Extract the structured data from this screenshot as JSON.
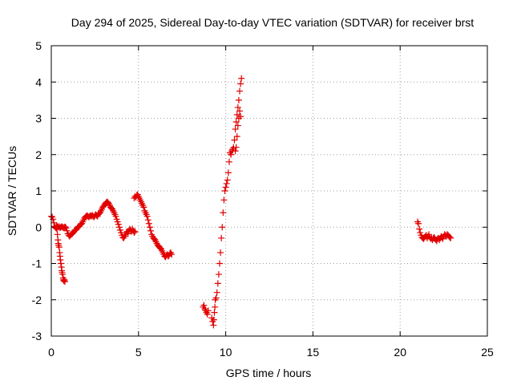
{
  "chart_data": {
    "type": "scatter",
    "title": "Day 294 of 2025, Sidereal Day-to-day VTEC variation (SDTVAR) for receiver brst",
    "xlabel": "GPS time / hours",
    "ylabel": "SDTVAR / TECUs",
    "xlim": [
      0,
      25
    ],
    "ylim": [
      -3,
      5
    ],
    "xticks": [
      0,
      5,
      10,
      15,
      20,
      25
    ],
    "yticks": [
      -3,
      -2,
      -1,
      0,
      1,
      2,
      3,
      4,
      5
    ],
    "grid": true,
    "marker": "plus",
    "color": "#e00000",
    "series": [
      {
        "x": [
          0.0,
          0.05,
          0.1,
          0.15,
          0.2,
          0.25,
          0.3,
          0.35,
          0.4,
          0.45,
          0.5,
          0.55,
          0.6,
          0.65,
          0.7,
          0.75,
          0.8,
          0.85,
          0.9,
          0.95,
          1.0,
          1.05,
          1.1,
          1.15,
          1.2,
          1.25,
          1.3,
          1.35,
          1.4,
          1.45,
          1.5,
          1.55,
          1.6,
          1.65,
          1.7,
          1.75,
          1.8,
          1.85,
          1.9,
          1.95,
          2.0,
          2.05,
          2.1,
          2.15,
          2.2,
          2.25,
          2.3,
          2.35,
          2.4,
          2.45,
          2.5,
          2.55,
          2.6,
          2.65,
          2.7,
          2.75,
          2.8,
          2.85,
          2.9,
          2.95,
          3.0,
          3.05,
          3.1,
          3.15,
          3.2,
          3.25,
          3.3,
          3.35,
          3.4,
          3.45,
          3.5,
          3.55,
          3.6,
          3.65,
          3.7,
          3.75,
          3.8,
          3.85,
          3.9,
          3.95,
          4.0,
          4.05,
          4.1,
          4.15,
          4.2,
          4.25,
          4.3,
          4.35,
          4.4,
          4.45,
          4.5,
          4.55,
          4.6,
          4.65,
          4.7,
          4.75,
          4.8
        ],
        "y": [
          0.3,
          0.28,
          0.22,
          0.12,
          0.02,
          -0.02,
          -0.02,
          0.02,
          0.0,
          0.02,
          -0.02,
          0.0,
          0.02,
          0.0,
          -0.02,
          0.0,
          0.01,
          -0.02,
          -0.1,
          -0.18,
          -0.22,
          -0.25,
          -0.22,
          -0.2,
          -0.18,
          -0.15,
          -0.12,
          -0.08,
          -0.08,
          -0.05,
          -0.02,
          0.02,
          0.02,
          0.06,
          0.08,
          0.1,
          0.15,
          0.2,
          0.25,
          0.28,
          0.3,
          0.32,
          0.3,
          0.28,
          0.3,
          0.32,
          0.3,
          0.33,
          0.3,
          0.28,
          0.32,
          0.35,
          0.32,
          0.3,
          0.35,
          0.38,
          0.4,
          0.45,
          0.5,
          0.55,
          0.58,
          0.62,
          0.65,
          0.68,
          0.7,
          0.68,
          0.65,
          0.6,
          0.55,
          0.52,
          0.5,
          0.45,
          0.4,
          0.35,
          0.3,
          0.22,
          0.15,
          0.08,
          0.0,
          -0.08,
          -0.15,
          -0.22,
          -0.28,
          -0.3,
          -0.25,
          -0.2,
          -0.15,
          -0.12,
          -0.18,
          -0.1,
          -0.05,
          -0.08,
          -0.12,
          -0.05,
          -0.1,
          -0.15,
          -0.12
        ]
      },
      {
        "x": [
          0.3,
          0.32,
          0.35,
          0.38,
          0.4,
          0.42,
          0.45,
          0.48,
          0.5,
          0.52,
          0.55,
          0.58,
          0.6,
          0.62,
          0.65,
          0.68,
          0.7,
          0.72,
          0.75,
          0.78
        ],
        "y": [
          0.05,
          -0.05,
          -0.2,
          -0.35,
          -0.45,
          -0.5,
          -0.55,
          -0.7,
          -0.8,
          -0.9,
          -1.0,
          -1.1,
          -1.2,
          -1.25,
          -1.3,
          -1.4,
          -1.45,
          -1.48,
          -1.45,
          -1.5
        ]
      },
      {
        "x": [
          4.75,
          4.8,
          4.85,
          4.9,
          4.95,
          5.0,
          5.05,
          5.1,
          5.15,
          5.2,
          5.25,
          5.3,
          5.35,
          5.4,
          5.45,
          5.5,
          5.55,
          5.6,
          5.65,
          5.7,
          5.75,
          5.8,
          5.85,
          5.9,
          5.95,
          6.0,
          6.05,
          6.1,
          6.15,
          6.2,
          6.25,
          6.3,
          6.35,
          6.4,
          6.45,
          6.5,
          6.55,
          6.6,
          6.65,
          6.7,
          6.75,
          6.8,
          6.85,
          6.9
        ],
        "y": [
          0.8,
          0.85,
          0.82,
          0.88,
          0.9,
          0.85,
          0.8,
          0.75,
          0.7,
          0.65,
          0.6,
          0.55,
          0.45,
          0.4,
          0.35,
          0.3,
          0.2,
          0.1,
          0.0,
          -0.1,
          -0.2,
          -0.25,
          -0.3,
          -0.32,
          -0.35,
          -0.4,
          -0.45,
          -0.5,
          -0.52,
          -0.55,
          -0.58,
          -0.6,
          -0.65,
          -0.7,
          -0.75,
          -0.8,
          -0.82,
          -0.78,
          -0.75,
          -0.8,
          -0.78,
          -0.72,
          -0.7,
          -0.75
        ]
      },
      {
        "x": [
          8.7,
          8.75,
          8.8,
          8.85,
          8.9,
          8.95,
          9.0
        ],
        "y": [
          -2.2,
          -2.15,
          -2.25,
          -2.3,
          -2.35,
          -2.4,
          -2.3
        ]
      },
      {
        "x": [
          9.2,
          9.25,
          9.3,
          9.32,
          9.35,
          9.38,
          9.4,
          9.45,
          9.5,
          9.55,
          9.6,
          9.65,
          9.7,
          9.75,
          9.8,
          9.85,
          9.9,
          9.95,
          10.0,
          10.05,
          10.1,
          10.15,
          10.2,
          10.25,
          10.3,
          10.35,
          10.4,
          10.45,
          10.5,
          10.55,
          10.6,
          10.65,
          10.7,
          10.75,
          10.8,
          10.85,
          10.9
        ],
        "y": [
          -2.5,
          -2.6,
          -2.7,
          -2.55,
          -2.35,
          -2.2,
          -2.0,
          -1.95,
          -1.8,
          -1.55,
          -1.3,
          -1.0,
          -0.7,
          -0.3,
          0.0,
          0.4,
          0.75,
          1.0,
          1.1,
          1.2,
          1.3,
          1.5,
          1.8,
          2.05,
          2.0,
          2.1,
          2.15,
          2.2,
          2.4,
          2.7,
          2.9,
          3.1,
          3.3,
          3.5,
          3.75,
          3.95,
          4.1
        ]
      },
      {
        "x": [
          10.55,
          10.6,
          10.65,
          10.7,
          10.75,
          10.8,
          10.85
        ],
        "y": [
          2.1,
          2.2,
          2.5,
          2.8,
          3.0,
          3.2,
          3.05
        ]
      },
      {
        "x": [
          21.0,
          21.05,
          21.1,
          21.15,
          21.2,
          21.25,
          21.3,
          21.35,
          21.4,
          21.45,
          21.5,
          21.55,
          21.6,
          21.65,
          21.7,
          21.75,
          21.8,
          21.85,
          21.9,
          21.95,
          22.0,
          22.05,
          22.1,
          22.15,
          22.2,
          22.25,
          22.3,
          22.35,
          22.4,
          22.45,
          22.5,
          22.55,
          22.6,
          22.65,
          22.7,
          22.75,
          22.8,
          22.85,
          22.9
        ],
        "y": [
          0.15,
          0.1,
          -0.05,
          -0.15,
          -0.22,
          -0.28,
          -0.3,
          -0.32,
          -0.28,
          -0.25,
          -0.22,
          -0.3,
          -0.25,
          -0.2,
          -0.28,
          -0.32,
          -0.3,
          -0.35,
          -0.3,
          -0.28,
          -0.32,
          -0.35,
          -0.38,
          -0.32,
          -0.3,
          -0.35,
          -0.3,
          -0.25,
          -0.28,
          -0.32,
          -0.25,
          -0.2,
          -0.22,
          -0.25,
          -0.2,
          -0.22,
          -0.25,
          -0.28,
          -0.3
        ]
      }
    ]
  }
}
